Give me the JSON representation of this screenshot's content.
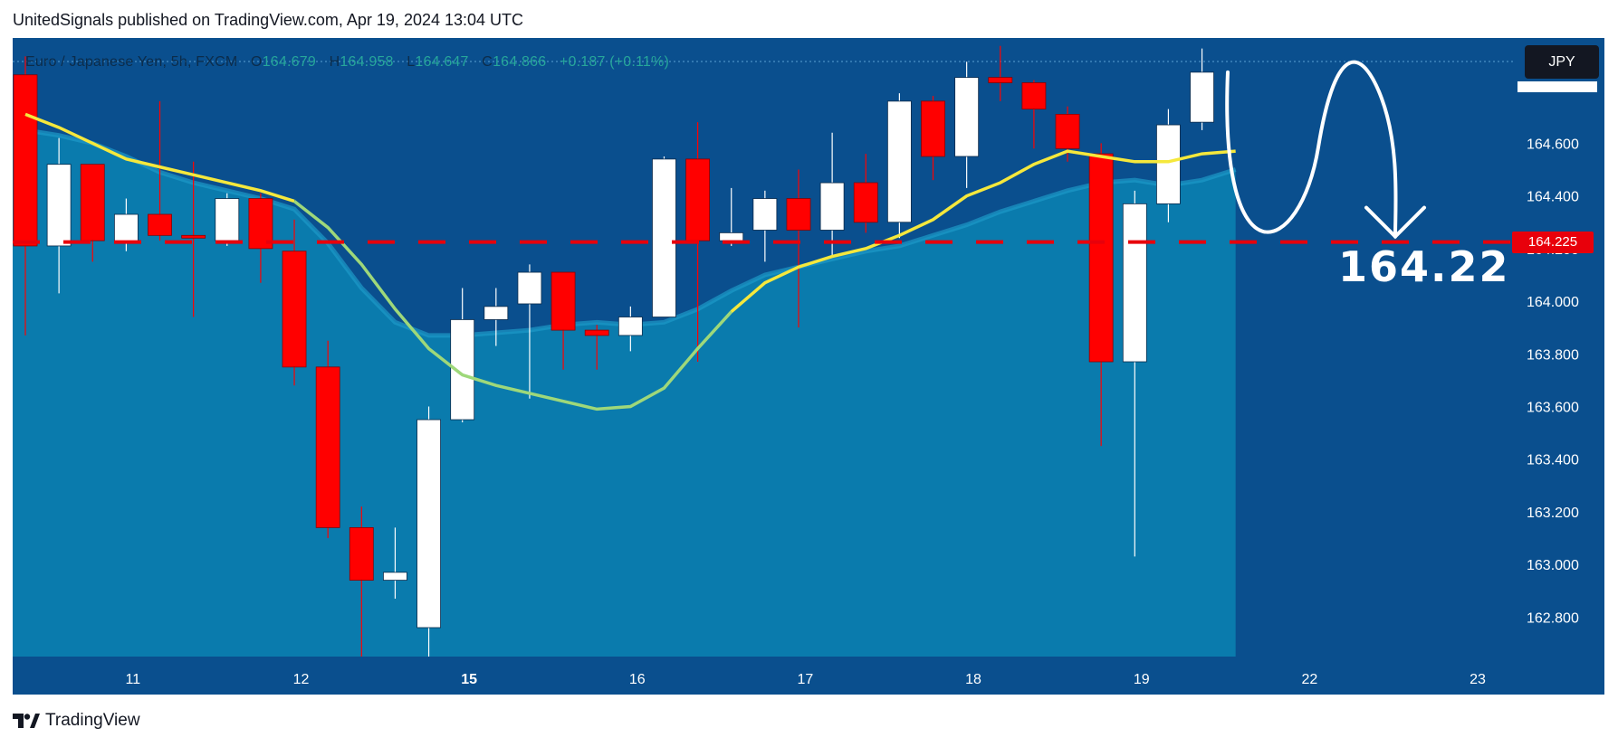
{
  "header": {
    "attribution": "UnitedSignals published on TradingView.com, Apr 19, 2024 13:04 UTC"
  },
  "legend": {
    "symbol": "Euro / Japanese Yen, 5h, FXCM",
    "open_label": "O",
    "open": "164.679",
    "high_label": "H",
    "high": "164.958",
    "low_label": "L",
    "low": "164.647",
    "close_label": "C",
    "close": "164.866",
    "change": "+0.187 (+0.11%)"
  },
  "currency_button": {
    "label": "JPY"
  },
  "price_tag": {
    "label": "164.225"
  },
  "annotation": {
    "text": "164.22"
  },
  "footer": {
    "brand": "TradingView"
  },
  "colors": {
    "background": "#0a4f8e",
    "area_fill": "#0a7fb0",
    "bull_candle": "#ffffff",
    "bear_candle": "#ff0000",
    "ma_fast": "#f5e83c",
    "ma_slow": "#9ed87a",
    "target_line": "#e8000b"
  },
  "chart_data": {
    "type": "candlestick",
    "title": "Euro / Japanese Yen, 5h, FXCM",
    "ylim": [
      162.65,
      165.0
    ],
    "y_ticks": [
      "164.600",
      "164.400",
      "164.200",
      "164.000",
      "163.800",
      "163.600",
      "163.400",
      "163.200",
      "163.000",
      "162.800"
    ],
    "x_ticks": [
      "11",
      "12",
      "15",
      "16",
      "17",
      "18",
      "19",
      "22",
      "23"
    ],
    "x_tick_positions": [
      3.2,
      8.2,
      13.2,
      18.2,
      23.2,
      28.2,
      33.2,
      38.2,
      43.2
    ],
    "target_price": 164.225,
    "candles": [
      {
        "o": 164.86,
        "h": 164.93,
        "l": 163.87,
        "c": 164.21
      },
      {
        "o": 164.21,
        "h": 164.62,
        "l": 164.03,
        "c": 164.52
      },
      {
        "o": 164.52,
        "h": 164.52,
        "l": 164.15,
        "c": 164.23
      },
      {
        "o": 164.22,
        "h": 164.39,
        "l": 164.19,
        "c": 164.33
      },
      {
        "o": 164.33,
        "h": 164.76,
        "l": 164.23,
        "c": 164.25
      },
      {
        "o": 164.25,
        "h": 164.53,
        "l": 163.94,
        "c": 164.24
      },
      {
        "o": 164.23,
        "h": 164.41,
        "l": 164.21,
        "c": 164.39
      },
      {
        "o": 164.39,
        "h": 164.41,
        "l": 164.07,
        "c": 164.2
      },
      {
        "o": 164.19,
        "h": 164.31,
        "l": 163.68,
        "c": 163.75
      },
      {
        "o": 163.75,
        "h": 163.85,
        "l": 163.1,
        "c": 163.14
      },
      {
        "o": 163.14,
        "h": 163.22,
        "l": 162.65,
        "c": 162.94
      },
      {
        "o": 162.94,
        "h": 163.14,
        "l": 162.87,
        "c": 162.97
      },
      {
        "o": 162.76,
        "h": 163.6,
        "l": 162.65,
        "c": 163.55
      },
      {
        "o": 163.55,
        "h": 164.05,
        "l": 163.54,
        "c": 163.93
      },
      {
        "o": 163.93,
        "h": 164.05,
        "l": 163.83,
        "c": 163.98
      },
      {
        "o": 163.99,
        "h": 164.14,
        "l": 163.63,
        "c": 164.11
      },
      {
        "o": 164.11,
        "h": 164.11,
        "l": 163.74,
        "c": 163.89
      },
      {
        "o": 163.89,
        "h": 163.91,
        "l": 163.74,
        "c": 163.87
      },
      {
        "o": 163.87,
        "h": 163.98,
        "l": 163.81,
        "c": 163.94
      },
      {
        "o": 163.94,
        "h": 164.55,
        "l": 163.94,
        "c": 164.54
      },
      {
        "o": 164.54,
        "h": 164.68,
        "l": 163.77,
        "c": 164.23
      },
      {
        "o": 164.23,
        "h": 164.43,
        "l": 164.21,
        "c": 164.26
      },
      {
        "o": 164.27,
        "h": 164.42,
        "l": 164.15,
        "c": 164.39
      },
      {
        "o": 164.39,
        "h": 164.5,
        "l": 163.9,
        "c": 164.27
      },
      {
        "o": 164.27,
        "h": 164.64,
        "l": 164.17,
        "c": 164.45
      },
      {
        "o": 164.45,
        "h": 164.56,
        "l": 164.26,
        "c": 164.3
      },
      {
        "o": 164.3,
        "h": 164.79,
        "l": 164.24,
        "c": 164.76
      },
      {
        "o": 164.76,
        "h": 164.78,
        "l": 164.46,
        "c": 164.55
      },
      {
        "o": 164.55,
        "h": 164.91,
        "l": 164.43,
        "c": 164.85
      },
      {
        "o": 164.85,
        "h": 164.97,
        "l": 164.76,
        "c": 164.83
      },
      {
        "o": 164.83,
        "h": 164.84,
        "l": 164.58,
        "c": 164.73
      },
      {
        "o": 164.71,
        "h": 164.74,
        "l": 164.53,
        "c": 164.58
      },
      {
        "o": 164.56,
        "h": 164.6,
        "l": 163.45,
        "c": 163.77
      },
      {
        "o": 163.77,
        "h": 164.42,
        "l": 163.03,
        "c": 164.37
      },
      {
        "o": 164.37,
        "h": 164.73,
        "l": 164.3,
        "c": 164.67
      },
      {
        "o": 164.68,
        "h": 164.96,
        "l": 164.65,
        "c": 164.87
      }
    ],
    "ma_fast": [
      164.71,
      164.66,
      164.6,
      164.54,
      164.51,
      164.48,
      164.45,
      164.42,
      164.38,
      164.28,
      164.14,
      163.97,
      163.82,
      163.72,
      163.68,
      163.65,
      163.62,
      163.59,
      163.6,
      163.67,
      163.82,
      163.96,
      164.07,
      164.13,
      164.17,
      164.2,
      164.25,
      164.31,
      164.4,
      164.45,
      164.52,
      164.57,
      164.55,
      164.53,
      164.53,
      164.56,
      164.57
    ],
    "ma_slow": [
      164.65,
      164.63,
      164.6,
      164.55,
      164.49,
      164.45,
      164.42,
      164.39,
      164.35,
      164.22,
      164.05,
      163.92,
      163.87,
      163.87,
      163.88,
      163.89,
      163.91,
      163.92,
      163.91,
      163.92,
      163.97,
      164.04,
      164.1,
      164.13,
      164.16,
      164.19,
      164.21,
      164.25,
      164.29,
      164.34,
      164.38,
      164.42,
      164.45,
      164.46,
      164.44,
      164.46,
      164.5
    ],
    "projection": {
      "from": 164.87,
      "swing_low": 164.3,
      "swing_high": 164.87,
      "to": 164.225
    }
  }
}
